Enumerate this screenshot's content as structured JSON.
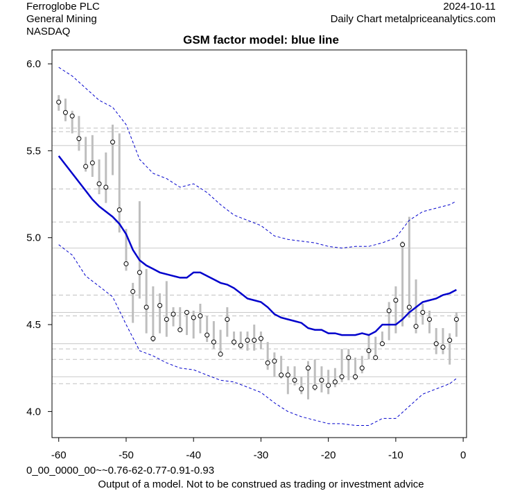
{
  "header": {
    "company": "Ferroglobe PLC",
    "sector": "General Mining",
    "exchange": "NASDAQ",
    "date": "2024-10-11",
    "source": "Daily Chart metalpriceanalytics.com"
  },
  "footer": {
    "model_code": "0_00_0000_00~~0.76-62-0.77-0.91-0.93",
    "disclaimer": "Output of a model. Not to be construed as trading or investment advice"
  },
  "chart_data": {
    "type": "line",
    "title": "GSM factor model: blue line",
    "xlabel": "",
    "ylabel": "",
    "xlim": [
      -61,
      0.5
    ],
    "ylim": [
      3.85,
      6.08
    ],
    "x_ticks": [
      -60,
      -50,
      -40,
      -30,
      -20,
      -10,
      0
    ],
    "y_ticks": [
      4.0,
      4.5,
      5.0,
      5.5,
      6.0
    ],
    "hlines_solid": [
      5.53,
      4.94,
      4.57,
      4.39,
      4.2
    ],
    "hlines_dashed": [
      5.63,
      5.61,
      5.28,
      5.09,
      4.67,
      4.55,
      4.36,
      4.3,
      4.16
    ],
    "prices": {
      "x": [
        -60,
        -59,
        -58,
        -57,
        -56,
        -55,
        -54,
        -53,
        -52,
        -51,
        -50,
        -49,
        -48,
        -47,
        -46,
        -45,
        -44,
        -43,
        -42,
        -41,
        -40,
        -39,
        -38,
        -37,
        -36,
        -35,
        -34,
        -33,
        -32,
        -31,
        -30,
        -29,
        -28,
        -27,
        -26,
        -25,
        -24,
        -23,
        -22,
        -21,
        -20,
        -19,
        -18,
        -17,
        -16,
        -15,
        -14,
        -13,
        -12,
        -11,
        -10,
        -9,
        -8,
        -7,
        -6,
        -5,
        -4,
        -3,
        -2,
        -1
      ],
      "close": [
        5.78,
        5.72,
        5.7,
        5.57,
        5.41,
        5.43,
        5.31,
        5.29,
        5.55,
        5.16,
        4.85,
        4.69,
        4.8,
        4.6,
        4.42,
        4.61,
        4.53,
        4.56,
        4.47,
        4.57,
        4.54,
        4.55,
        4.44,
        4.4,
        4.33,
        4.53,
        4.4,
        4.38,
        4.41,
        4.41,
        4.42,
        4.28,
        4.29,
        4.21,
        4.21,
        4.18,
        4.13,
        4.25,
        4.14,
        4.18,
        4.15,
        4.17,
        4.2,
        4.31,
        4.2,
        4.25,
        4.35,
        4.31,
        4.39,
        4.58,
        4.64,
        4.96,
        4.6,
        4.49,
        4.57,
        4.53,
        4.39,
        4.37,
        4.41,
        4.53
      ],
      "low": [
        5.73,
        5.67,
        5.6,
        5.5,
        5.38,
        5.35,
        5.25,
        5.2,
        5.36,
        5.03,
        4.81,
        4.51,
        4.65,
        4.45,
        4.4,
        4.45,
        4.43,
        4.49,
        4.46,
        4.44,
        4.42,
        4.45,
        4.4,
        4.36,
        4.33,
        4.43,
        4.38,
        4.36,
        4.35,
        4.35,
        4.36,
        4.24,
        4.2,
        4.19,
        4.1,
        4.15,
        4.1,
        4.07,
        4.12,
        4.11,
        4.1,
        4.14,
        4.17,
        4.18,
        4.18,
        4.22,
        4.3,
        4.3,
        4.38,
        4.41,
        4.45,
        4.49,
        4.54,
        4.45,
        4.5,
        4.45,
        4.33,
        4.33,
        4.27,
        4.43
      ],
      "high": [
        5.82,
        5.8,
        5.73,
        5.7,
        5.58,
        5.59,
        5.45,
        5.49,
        5.65,
        5.6,
        5.05,
        4.74,
        5.21,
        4.82,
        4.72,
        4.68,
        4.75,
        4.6,
        4.6,
        4.56,
        4.58,
        4.62,
        4.55,
        4.52,
        4.47,
        4.6,
        4.46,
        4.46,
        4.46,
        4.5,
        4.46,
        4.4,
        4.34,
        4.32,
        4.26,
        4.26,
        4.2,
        4.29,
        4.3,
        4.26,
        4.24,
        4.25,
        4.36,
        4.36,
        4.31,
        4.32,
        4.44,
        4.43,
        4.46,
        4.63,
        4.72,
        4.98,
        5.12,
        4.76,
        4.62,
        4.58,
        4.48,
        4.48,
        4.45,
        4.57
      ]
    },
    "series": [
      {
        "name": "model",
        "x": [
          -60,
          -59,
          -58,
          -57,
          -56,
          -55,
          -54,
          -53,
          -52,
          -51,
          -50,
          -49,
          -48,
          -47,
          -46,
          -45,
          -44,
          -43,
          -42,
          -41,
          -40,
          -39,
          -38,
          -37,
          -36,
          -35,
          -34,
          -33,
          -32,
          -31,
          -30,
          -29,
          -28,
          -27,
          -26,
          -25,
          -24,
          -23,
          -22,
          -21,
          -20,
          -19,
          -18,
          -17,
          -16,
          -15,
          -14,
          -13,
          -12,
          -11,
          -10,
          -9,
          -8,
          -7,
          -6,
          -5,
          -4,
          -3,
          -2,
          -1
        ],
        "values": [
          5.47,
          5.42,
          5.37,
          5.32,
          5.27,
          5.22,
          5.18,
          5.15,
          5.12,
          5.08,
          5.02,
          4.93,
          4.87,
          4.84,
          4.82,
          4.8,
          4.79,
          4.78,
          4.77,
          4.77,
          4.8,
          4.8,
          4.78,
          4.76,
          4.74,
          4.73,
          4.71,
          4.68,
          4.65,
          4.64,
          4.63,
          4.6,
          4.56,
          4.54,
          4.53,
          4.52,
          4.51,
          4.48,
          4.47,
          4.47,
          4.45,
          4.45,
          4.44,
          4.44,
          4.44,
          4.45,
          4.44,
          4.46,
          4.5,
          4.5,
          4.5,
          4.53,
          4.57,
          4.6,
          4.63,
          4.64,
          4.65,
          4.67,
          4.68,
          4.7
        ]
      },
      {
        "name": "upper band",
        "x": [
          -60,
          -58,
          -56,
          -54,
          -52,
          -50,
          -48,
          -46,
          -44,
          -42,
          -40,
          -38,
          -36,
          -34,
          -32,
          -30,
          -28,
          -26,
          -24,
          -22,
          -20,
          -18,
          -16,
          -14,
          -12,
          -10,
          -8,
          -6,
          -4,
          -2,
          -1
        ],
        "values": [
          5.98,
          5.93,
          5.86,
          5.79,
          5.75,
          5.65,
          5.45,
          5.37,
          5.34,
          5.29,
          5.31,
          5.26,
          5.19,
          5.13,
          5.1,
          5.07,
          5.01,
          4.99,
          4.98,
          4.97,
          4.95,
          4.94,
          4.95,
          4.95,
          4.97,
          5.0,
          5.1,
          5.15,
          5.17,
          5.19,
          5.21
        ]
      },
      {
        "name": "lower band",
        "x": [
          -60,
          -58,
          -56,
          -54,
          -52,
          -50,
          -48,
          -46,
          -44,
          -42,
          -40,
          -38,
          -36,
          -34,
          -32,
          -30,
          -28,
          -26,
          -24,
          -22,
          -20,
          -18,
          -16,
          -14,
          -12,
          -10,
          -8,
          -6,
          -4,
          -2,
          -1
        ],
        "values": [
          4.96,
          4.9,
          4.78,
          4.72,
          4.66,
          4.5,
          4.35,
          4.32,
          4.28,
          4.25,
          4.24,
          4.21,
          4.18,
          4.17,
          4.14,
          4.11,
          4.05,
          4.0,
          3.97,
          3.95,
          3.93,
          3.93,
          3.92,
          3.92,
          3.96,
          3.96,
          4.03,
          4.1,
          4.13,
          4.16,
          4.19
        ]
      }
    ],
    "colors": {
      "model": "#0000CC",
      "bands": "#0000CC",
      "range_bars": "#BEBEBE",
      "hline_solid": "#C8C8C8",
      "hline_dashed": "#C0C0C0",
      "frame": "#000000"
    }
  }
}
